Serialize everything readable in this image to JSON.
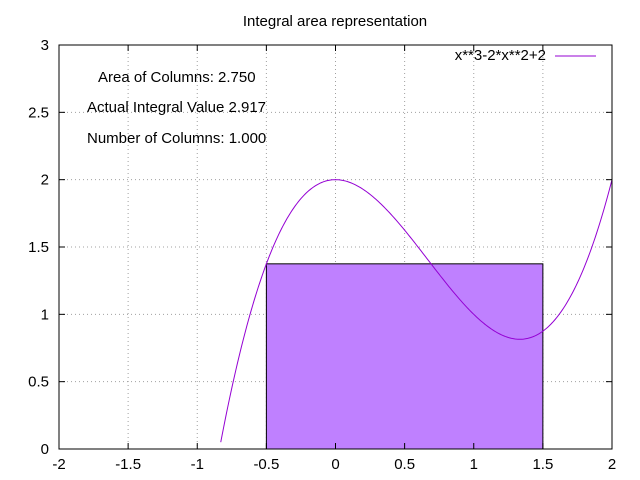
{
  "chart_data": {
    "type": "line",
    "title": "Integral area representation",
    "xlim": [
      -2,
      2
    ],
    "ylim": [
      0,
      3
    ],
    "x_ticks": [
      "-2",
      "-1.5",
      "-1",
      "-0.5",
      "0",
      "0.5",
      "1",
      "1.5",
      "2"
    ],
    "y_ticks": [
      "0",
      "0.5",
      "1",
      "1.5",
      "2",
      "2.5",
      "3"
    ],
    "grid": true,
    "legend_position": "top-right",
    "series": [
      {
        "name": "x**3-2*x**2+2",
        "expression": "x^3 - 2x^2 + 2",
        "color": "#9400d3"
      }
    ],
    "columns": [
      {
        "x_start": -0.5,
        "x_end": 1.5,
        "height": 1.375,
        "fill": "#bf80ff",
        "stroke": "#000000"
      }
    ],
    "annotations": [
      "Area of Columns: 2.750",
      "Actual Integral Value 2.917",
      "Number of Columns: 1.000"
    ]
  }
}
